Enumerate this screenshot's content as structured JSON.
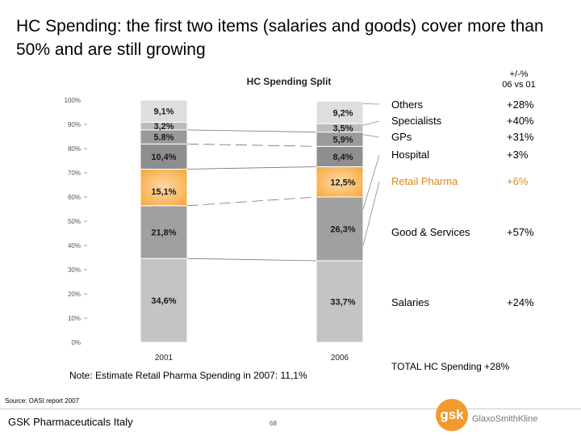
{
  "slide": {
    "title": "HC Spending: the first two items (salaries and goods) cover more than 50% and are still growing",
    "change_header": "+/-%\n06 vs 01",
    "total": "TOTAL HC Spending +28%",
    "note": "Note: Estimate Retail Pharma Spending in 2007: 11,1%",
    "source": "Source: OASI report 2007",
    "company": "GSK Pharmaceuticals Italy",
    "page_number": "68",
    "logo_mark": "gsk",
    "logo_name": "GlaxoSmithKline"
  },
  "legend": [
    {
      "name": "Others",
      "change": "+28%"
    },
    {
      "name": "Specialists",
      "change": "+40%"
    },
    {
      "name": "GPs",
      "change": "+31%"
    },
    {
      "name": "Hospital",
      "change": "+3%"
    },
    {
      "name": "Retail Pharma",
      "change": "+6%"
    },
    {
      "name": "Good & Services",
      "change": "+57%"
    },
    {
      "name": "Salaries",
      "change": "+24%"
    }
  ],
  "colors": {
    "salaries": "#c4c4c4",
    "goods": "#a0a0a0",
    "retail": "#f6a73a",
    "retail_light": "#ffd9a8",
    "hospital": "#8e8e8e",
    "gps": "#9a9a9a",
    "specialists": "#bcbcbc",
    "others": "#dedede",
    "retail_text": "#d98a1f"
  },
  "chart_data": {
    "type": "bar",
    "stacked": true,
    "title": "HC Spending Split",
    "categories": [
      "2001",
      "2006"
    ],
    "ylim": [
      0,
      100
    ],
    "yticks": [
      "0%",
      "10%",
      "20%",
      "30%",
      "40%",
      "50%",
      "60%",
      "70%",
      "80%",
      "90%",
      "100%"
    ],
    "series": [
      {
        "name": "Salaries",
        "values": [
          34.6,
          33.7
        ],
        "labels": [
          "34,6%",
          "33,7%"
        ]
      },
      {
        "name": "Good & Services",
        "values": [
          21.8,
          26.3
        ],
        "labels": [
          "21,8%",
          "26,3%"
        ]
      },
      {
        "name": "Retail Pharma",
        "values": [
          15.1,
          12.5
        ],
        "labels": [
          "15,1%",
          "12,5%"
        ]
      },
      {
        "name": "Hospital",
        "values": [
          10.4,
          8.4
        ],
        "labels": [
          "10,4%",
          "8,4%"
        ]
      },
      {
        "name": "GPs",
        "values": [
          5.8,
          5.9
        ],
        "labels": [
          "5.8%",
          "5,9%"
        ]
      },
      {
        "name": "Specialists",
        "values": [
          3.2,
          3.5
        ],
        "labels": [
          "3,2%",
          "3,5%"
        ]
      },
      {
        "name": "Others",
        "values": [
          9.1,
          9.2
        ],
        "labels": [
          "9,1%",
          "9,2%"
        ]
      }
    ]
  }
}
